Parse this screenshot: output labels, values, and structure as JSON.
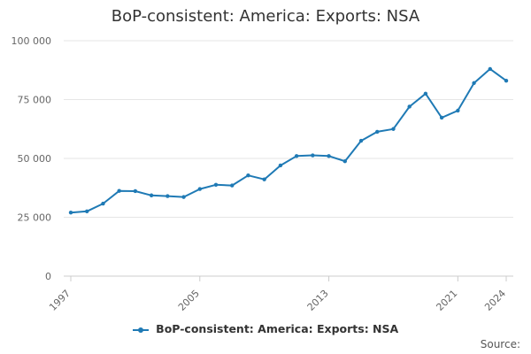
{
  "chart_data": {
    "type": "line",
    "title": "BoP-consistent: America: Exports: NSA",
    "xlabel": "",
    "ylabel": "",
    "x": [
      1997,
      1998,
      1999,
      2000,
      2001,
      2002,
      2003,
      2004,
      2005,
      2006,
      2007,
      2008,
      2009,
      2010,
      2011,
      2012,
      2013,
      2014,
      2015,
      2016,
      2017,
      2018,
      2019,
      2020,
      2021,
      2022,
      2023,
      2024
    ],
    "series": [
      {
        "name": "BoP-consistent: America: Exports: NSA",
        "color": "#1f7ab5",
        "values": [
          27000,
          27500,
          30800,
          36200,
          36100,
          34300,
          34000,
          33600,
          37000,
          38800,
          38500,
          42800,
          41100,
          47000,
          51000,
          51300,
          51000,
          48800,
          57500,
          61300,
          62500,
          72000,
          77500,
          67300,
          70300,
          82000,
          88000,
          83000
        ]
      }
    ],
    "ylim": [
      0,
      100000
    ],
    "yticks": [
      0,
      25000,
      50000,
      75000,
      100000
    ],
    "ytick_labels": [
      "0",
      "25 000",
      "50 000",
      "75 000",
      "100 000"
    ],
    "xticks": [
      1997,
      2005,
      2013,
      2021,
      2024
    ],
    "xtick_labels": [
      "1997",
      "2005",
      "2013",
      "2021",
      "2024"
    ],
    "grid": true,
    "legend_position": "bottom-center"
  },
  "footer": {
    "source_label": "Source:"
  }
}
